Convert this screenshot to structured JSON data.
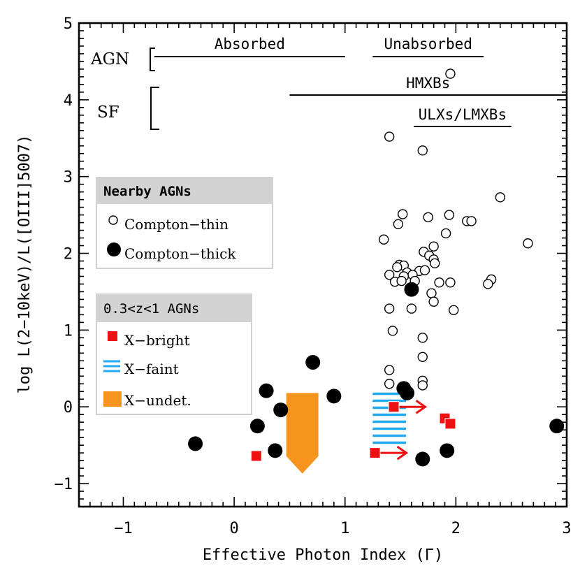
{
  "chart_data": {
    "type": "scatter",
    "xlabel": "Effective Photon Index (Γ)",
    "ylabel": "log L(2−10keV)/L([OIII]5007)",
    "xlim": [
      -1.4,
      3.0
    ],
    "ylim": [
      -1.3,
      5.0
    ],
    "x_ticks": [
      -1,
      0,
      1,
      2,
      3
    ],
    "x_tick_labels": [
      "−1",
      "0",
      "1",
      "2",
      "3"
    ],
    "y_ticks": [
      -1,
      0,
      1,
      2,
      3,
      4,
      5
    ],
    "y_tick_labels": [
      "−1",
      "0",
      "1",
      "2",
      "3",
      "4",
      "5"
    ],
    "annotations": {
      "agn_label": "AGN",
      "sf_label": "SF",
      "absorbed": "Absorbed",
      "unabsorbed": "Unabsorbed",
      "hmxbs": "HMXBs",
      "ulxs": "ULXs/LMXBs",
      "absorbed_range": [
        -0.72,
        1.0
      ],
      "unabsorbed_range": [
        1.25,
        2.25
      ],
      "hmxbs_range": [
        0.5,
        3.0
      ],
      "ulxs_range": [
        1.62,
        2.5
      ]
    },
    "legend_nearby": {
      "title": "Nearby AGNs",
      "thin": "Compton−thin",
      "thick": "Compton−thick"
    },
    "legend_z": {
      "title": "0.3<z<1 AGNs",
      "bright": "X−bright",
      "faint": "X−faint",
      "undet": "X−undet."
    },
    "colors": {
      "bright": "#ee1111",
      "faint": "#22aaee",
      "undet": "#f7941d",
      "legend_header": "#d3d3d3"
    },
    "series": [
      {
        "name": "Compton-thin",
        "marker": "open-circle",
        "points": [
          [
            1.95,
            4.34
          ],
          [
            1.4,
            3.52
          ],
          [
            1.7,
            3.34
          ],
          [
            2.4,
            2.73
          ],
          [
            1.52,
            2.51
          ],
          [
            1.94,
            2.5
          ],
          [
            1.75,
            2.47
          ],
          [
            1.48,
            2.38
          ],
          [
            2.1,
            2.42
          ],
          [
            2.14,
            2.42
          ],
          [
            1.91,
            2.26
          ],
          [
            1.35,
            2.18
          ],
          [
            2.65,
            2.13
          ],
          [
            1.8,
            2.09
          ],
          [
            1.71,
            2.02
          ],
          [
            1.76,
            1.97
          ],
          [
            1.8,
            1.92
          ],
          [
            1.81,
            1.87
          ],
          [
            1.49,
            1.85
          ],
          [
            1.53,
            1.84
          ],
          [
            1.47,
            1.82
          ],
          [
            1.67,
            1.77
          ],
          [
            1.72,
            1.78
          ],
          [
            1.56,
            1.75
          ],
          [
            1.61,
            1.72
          ],
          [
            1.4,
            1.72
          ],
          [
            1.53,
            1.7
          ],
          [
            1.45,
            1.63
          ],
          [
            1.51,
            1.64
          ],
          [
            1.63,
            1.64
          ],
          [
            1.85,
            1.62
          ],
          [
            1.95,
            1.62
          ],
          [
            2.32,
            1.66
          ],
          [
            2.29,
            1.6
          ],
          [
            1.78,
            1.48
          ],
          [
            1.8,
            1.37
          ],
          [
            1.4,
            1.28
          ],
          [
            1.6,
            1.28
          ],
          [
            1.98,
            1.26
          ],
          [
            1.43,
            0.99
          ],
          [
            1.7,
            0.9
          ],
          [
            1.7,
            0.65
          ],
          [
            1.4,
            0.48
          ],
          [
            1.4,
            0.3
          ],
          [
            1.7,
            0.34
          ],
          [
            1.7,
            0.28
          ]
        ]
      },
      {
        "name": "Compton-thick",
        "marker": "filled-circle",
        "points": [
          [
            1.6,
            1.53
          ],
          [
            0.71,
            0.58
          ],
          [
            0.29,
            0.21
          ],
          [
            0.9,
            0.14
          ],
          [
            1.53,
            0.24
          ],
          [
            1.56,
            0.18
          ],
          [
            0.42,
            -0.04
          ],
          [
            0.21,
            -0.25
          ],
          [
            -0.35,
            -0.48
          ],
          [
            0.37,
            -0.57
          ],
          [
            1.92,
            -0.57
          ],
          [
            1.7,
            -0.68
          ],
          [
            2.91,
            -0.25
          ]
        ]
      },
      {
        "name": "X-bright",
        "marker": "filled-square",
        "points": [
          [
            0.2,
            -0.64
          ],
          [
            1.44,
            0.0
          ],
          [
            1.9,
            -0.15
          ],
          [
            1.95,
            -0.22
          ],
          [
            1.27,
            -0.6
          ]
        ]
      },
      {
        "name": "X-bright lower limits",
        "marker": "arrow-right",
        "points": [
          [
            1.44,
            0.0
          ],
          [
            1.27,
            -0.6
          ]
        ]
      },
      {
        "name": "X-faint",
        "marker": "hatched-box",
        "x_range": [
          1.25,
          1.55
        ],
        "y_range": [
          -0.55,
          0.17
        ]
      },
      {
        "name": "X-undet.",
        "marker": "arrow-bar",
        "x_range": [
          0.47,
          0.76
        ],
        "y_top": 0.18,
        "y_tip": -0.87
      }
    ]
  }
}
